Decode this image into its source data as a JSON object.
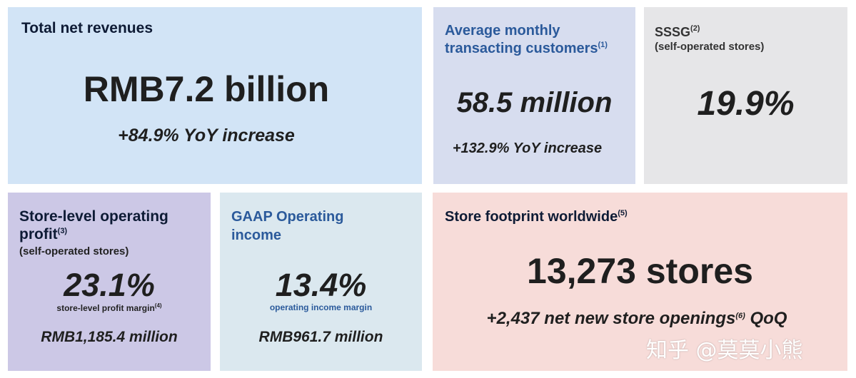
{
  "cards": {
    "revenue": {
      "title": "Total net revenues",
      "value": "RMB7.2 billion",
      "change": "+84.9% YoY increase"
    },
    "customers": {
      "title_line1": "Average monthly",
      "title_line2": "transacting customers",
      "title_note": "(1)",
      "value": "58.5 million",
      "change": "+132.9% YoY increase"
    },
    "sssg": {
      "title": "SSSG",
      "title_note": "(2)",
      "subtitle": "(self-operated stores)",
      "value": "19.9%"
    },
    "store_profit": {
      "title_line1": "Store-level operating",
      "title_line2": "profit",
      "title_note": "(3)",
      "subtitle": "(self-operated stores)",
      "value": "23.1%",
      "caption": "store-level profit margin",
      "caption_note": "(4)",
      "amount": "RMB1,185.4 million"
    },
    "gaap": {
      "title_line1": "GAAP Operating",
      "title_line2": "income",
      "value": "13.4%",
      "caption": "operating income margin",
      "amount": "RMB961.7 million"
    },
    "stores": {
      "title": "Store footprint worldwide",
      "title_note": "(5)",
      "value": "13,273 stores",
      "change_prefix": "+2,437 net new store openings",
      "change_note": "(6)",
      "change_suffix": " QoQ"
    }
  },
  "watermark": "知乎 @莫莫小熊",
  "colors": {
    "revenue_bg": "#d2e4f6",
    "customers_bg": "#d7ddef",
    "sssg_bg": "#e6e6e8",
    "store_profit_bg": "#ccc8e6",
    "gaap_bg": "#dbe8ef",
    "stores_bg": "#f7dcd9",
    "blue_title": "#2b5a9b"
  }
}
